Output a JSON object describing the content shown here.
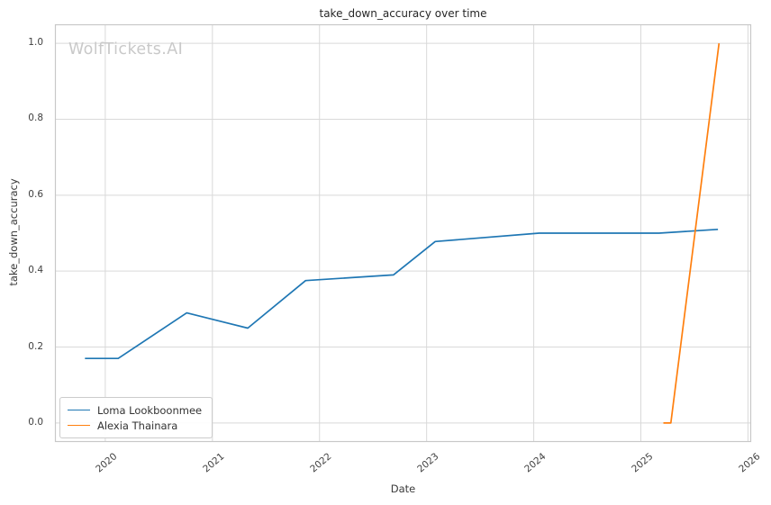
{
  "watermark": "WolfTickets.AI",
  "style": {
    "background": "#ffffff",
    "grid_color": "#d9d9d9",
    "spine_color": "#c8c8c8",
    "title_color": "#262626",
    "tick_color": "#404040",
    "axis_label_color": "#3b3b3b",
    "watermark_color": "#c9c9c9",
    "legend_border_color": "#cccccc"
  },
  "chart_data": {
    "type": "line",
    "title": "take_down_accuracy over time",
    "xlabel": "Date",
    "ylabel": "take_down_accuracy",
    "xlim": [
      2019.53,
      2026.03
    ],
    "ylim": [
      -0.05,
      1.05
    ],
    "grid": true,
    "legend_position": "lower left",
    "x_ticks": [
      2020,
      2021,
      2022,
      2023,
      2024,
      2025,
      2026
    ],
    "x_tick_labels": [
      "2020",
      "2021",
      "2022",
      "2023",
      "2024",
      "2025",
      "2026"
    ],
    "y_ticks": [
      0.0,
      0.2,
      0.4,
      0.6,
      0.8,
      1.0
    ],
    "y_tick_labels": [
      "0.0",
      "0.2",
      "0.4",
      "0.6",
      "0.8",
      "1.0"
    ],
    "series": [
      {
        "name": "Loma Lookboonmee",
        "color": "#1f77b4",
        "x": [
          2019.81,
          2020.12,
          2020.76,
          2021.33,
          2021.87,
          2022.69,
          2023.08,
          2024.05,
          2025.17,
          2025.72
        ],
        "y": [
          0.17,
          0.17,
          0.29,
          0.25,
          0.375,
          0.39,
          0.478,
          0.5,
          0.5,
          0.51
        ]
      },
      {
        "name": "Alexia Thainara",
        "color": "#ff7f0e",
        "x": [
          2025.21,
          2025.28,
          2025.73
        ],
        "y": [
          0.0,
          0.0,
          1.0
        ]
      }
    ]
  }
}
